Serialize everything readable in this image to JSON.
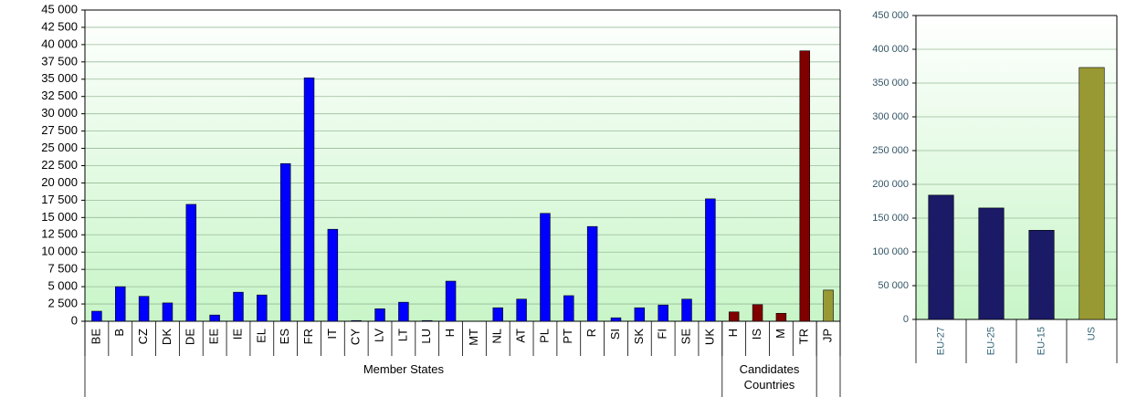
{
  "chart_data": [
    {
      "type": "bar",
      "categories": [
        "BE",
        "B",
        "CZ",
        "DK",
        "DE",
        "EE",
        "IE",
        "EL",
        "ES",
        "FR",
        "IT",
        "CY",
        "LV",
        "LT",
        "LU",
        "H",
        "MT",
        "NL",
        "AT",
        "PL",
        "PT",
        "R",
        "SI",
        "SK",
        "FI",
        "SE",
        "UK",
        "H",
        "IS",
        "M",
        "TR",
        "JP"
      ],
      "values": [
        1450,
        5000,
        3600,
        2650,
        16900,
        900,
        4200,
        3800,
        22800,
        35200,
        13300,
        100,
        1800,
        2750,
        100,
        5800,
        0,
        1950,
        3200,
        15600,
        3700,
        13700,
        500,
        1950,
        2350,
        3200,
        17700,
        1350,
        2400,
        1150,
        39100,
        4500
      ],
      "colors": [
        "#0000ff",
        "#0000ff",
        "#0000ff",
        "#0000ff",
        "#0000ff",
        "#0000ff",
        "#0000ff",
        "#0000ff",
        "#0000ff",
        "#0000ff",
        "#0000ff",
        "#0000ff",
        "#0000ff",
        "#0000ff",
        "#0000ff",
        "#0000ff",
        "#0000ff",
        "#0000ff",
        "#0000ff",
        "#0000ff",
        "#0000ff",
        "#0000ff",
        "#0000ff",
        "#0000ff",
        "#0000ff",
        "#0000ff",
        "#0000ff",
        "#800000",
        "#800000",
        "#800000",
        "#800000",
        "#999933"
      ],
      "groups": [
        {
          "label": "Member States",
          "count": 27
        },
        {
          "label": "Candidates Countries",
          "count": 4
        }
      ],
      "ylim": [
        0,
        45000
      ],
      "yticks": [
        0,
        {
          "value": 2500,
          "label": "2 500"
        },
        {
          "value": 5000,
          "label": "5 000"
        },
        {
          "value": 7500,
          "label": "7 500"
        },
        {
          "value": 10000,
          "label": "10 000"
        },
        {
          "value": 12500,
          "label": "12 500"
        },
        {
          "value": 15000,
          "label": "15 000"
        },
        {
          "value": 17500,
          "label": "17 500"
        },
        {
          "value": 20000,
          "label": "20 000"
        },
        {
          "value": 22500,
          "label": "22 500"
        },
        {
          "value": 25000,
          "label": "25 000"
        },
        {
          "value": 27500,
          "label": "27 500"
        },
        {
          "value": 30000,
          "label": "30 000"
        },
        {
          "value": 32500,
          "label": "32 500"
        },
        {
          "value": 35000,
          "label": "35 000"
        },
        {
          "value": 37500,
          "label": "37 500"
        },
        {
          "value": 40000,
          "label": "40 000"
        },
        {
          "value": 42500,
          "label": "42 500"
        },
        {
          "value": 45000,
          "label": "45 000"
        }
      ],
      "grid": true
    },
    {
      "type": "bar",
      "categories": [
        "EU-27",
        "EU-25",
        "EU-15",
        "US"
      ],
      "values": [
        184000,
        165000,
        132000,
        373000
      ],
      "colors": [
        "#1a1a66",
        "#1a1a66",
        "#1a1a66",
        "#999933"
      ],
      "ylim": [
        0,
        450000
      ],
      "yticks": [
        0,
        {
          "value": 50000,
          "label": "50 000"
        },
        {
          "value": 100000,
          "label": "100 000"
        },
        {
          "value": 150000,
          "label": "150 000"
        },
        {
          "value": 200000,
          "label": "200 000"
        },
        {
          "value": 250000,
          "label": "250 000"
        },
        {
          "value": 300000,
          "label": "300 000"
        },
        {
          "value": 350000,
          "label": "350 000"
        },
        {
          "value": 400000,
          "label": "400 000"
        },
        {
          "value": 450000,
          "label": "450 000"
        }
      ],
      "grid": true
    }
  ]
}
